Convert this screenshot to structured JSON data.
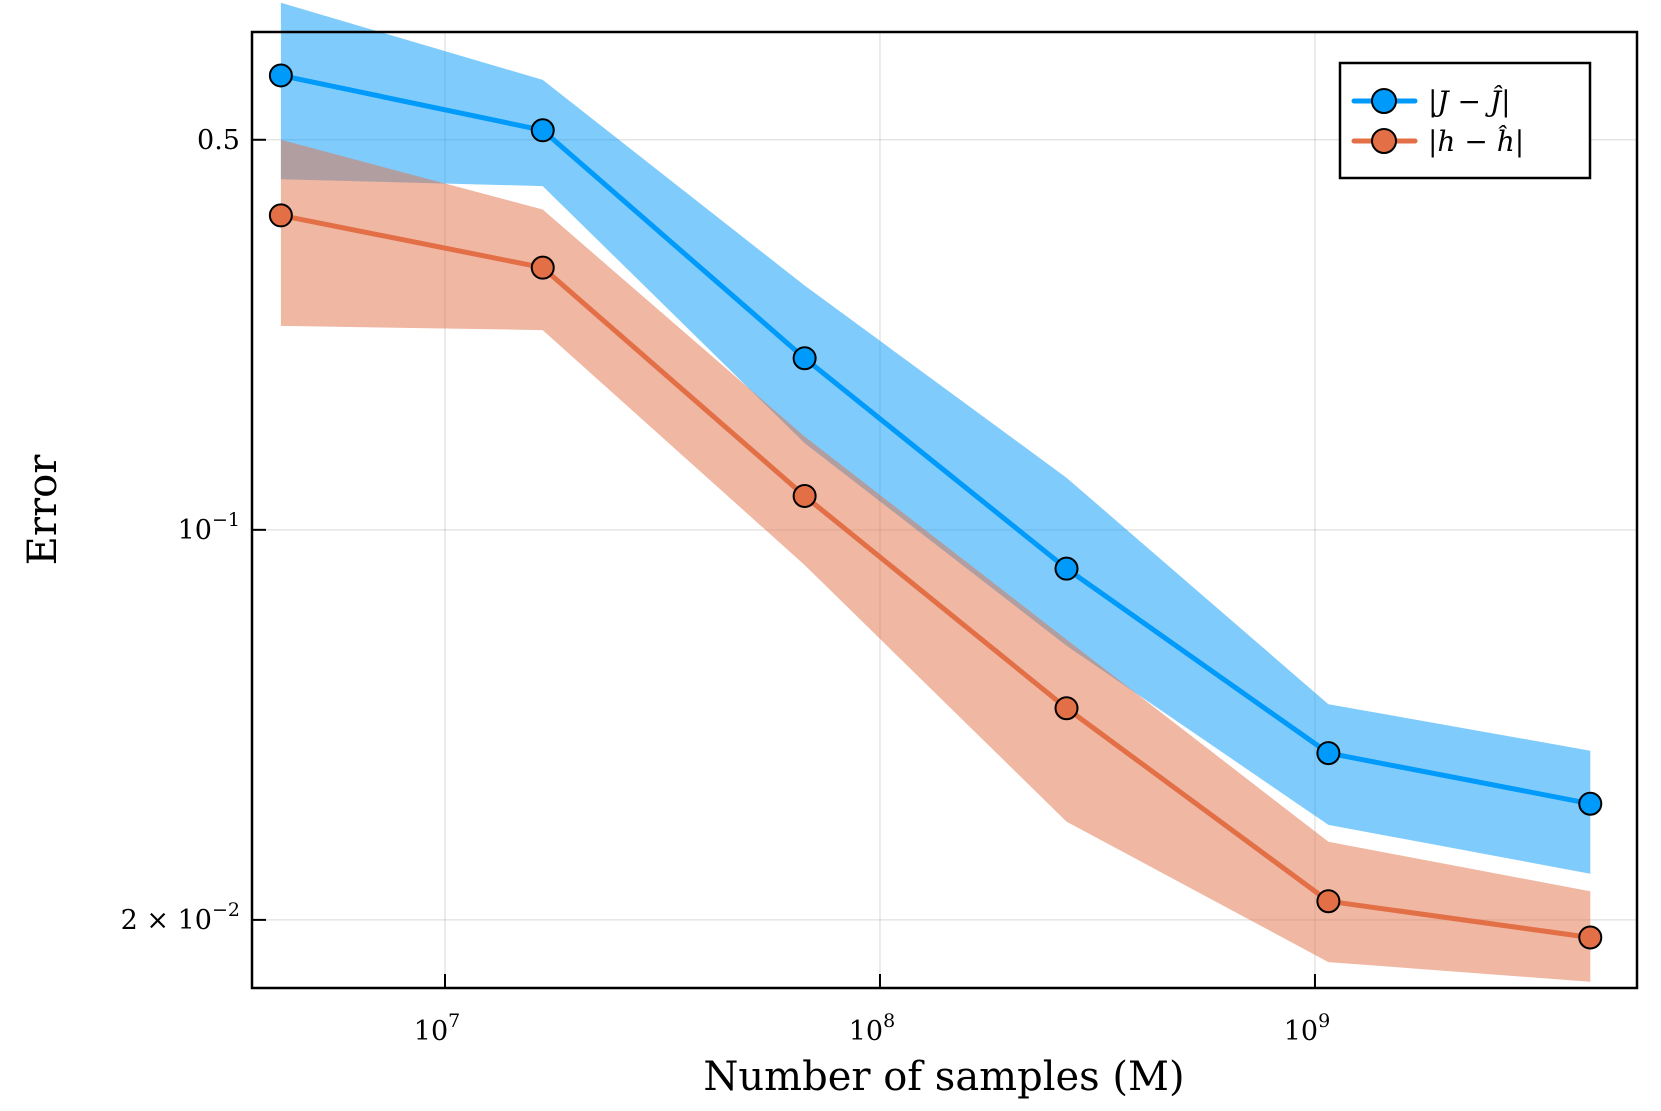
{
  "chart_data": {
    "type": "line",
    "title": "",
    "xlabel": "Number of samples (M)",
    "ylabel": "Error",
    "xscale": "log",
    "yscale": "log",
    "xlim": [
      3600000,
      5500000000
    ],
    "ylim": [
      0.0151,
      0.78
    ],
    "grid": true,
    "legend_position": "top-right",
    "x_ticks": [
      {
        "value": 10000000,
        "base": "10",
        "exp": "7"
      },
      {
        "value": 100000000,
        "base": "10",
        "exp": "8"
      },
      {
        "value": 1000000000,
        "base": "10",
        "exp": "9"
      }
    ],
    "y_ticks": [
      {
        "value": 0.5,
        "base": "0.5",
        "exp": ""
      },
      {
        "value": 0.1,
        "base": "10",
        "exp": "−1"
      },
      {
        "value": 0.02,
        "base": "2 × 10",
        "exp": "−2"
      }
    ],
    "x": [
      4194304,
      16777216,
      67108864,
      268435456,
      1073741824,
      4294967296
    ],
    "series": [
      {
        "name": "|J − Ĵ|",
        "color": "#009AFA",
        "band_color": "#009AFA",
        "values": [
          0.652,
          0.52,
          0.203,
          0.0852,
          0.0398,
          0.0323
        ],
        "lower": [
          0.425,
          0.413,
          0.143,
          0.062,
          0.0296,
          0.0242
        ],
        "upper": [
          0.88,
          0.64,
          0.274,
          0.124,
          0.0487,
          0.0402
        ]
      },
      {
        "name": "|h − ĥ|",
        "color": "#E26F46",
        "band_color": "#E26F46",
        "values": [
          0.366,
          0.295,
          0.115,
          0.0479,
          0.0216,
          0.0186
        ],
        "lower": [
          0.232,
          0.228,
          0.0865,
          0.03,
          0.0168,
          0.0155
        ],
        "upper": [
          0.5,
          0.375,
          0.147,
          0.0636,
          0.0276,
          0.0225
        ]
      }
    ]
  }
}
